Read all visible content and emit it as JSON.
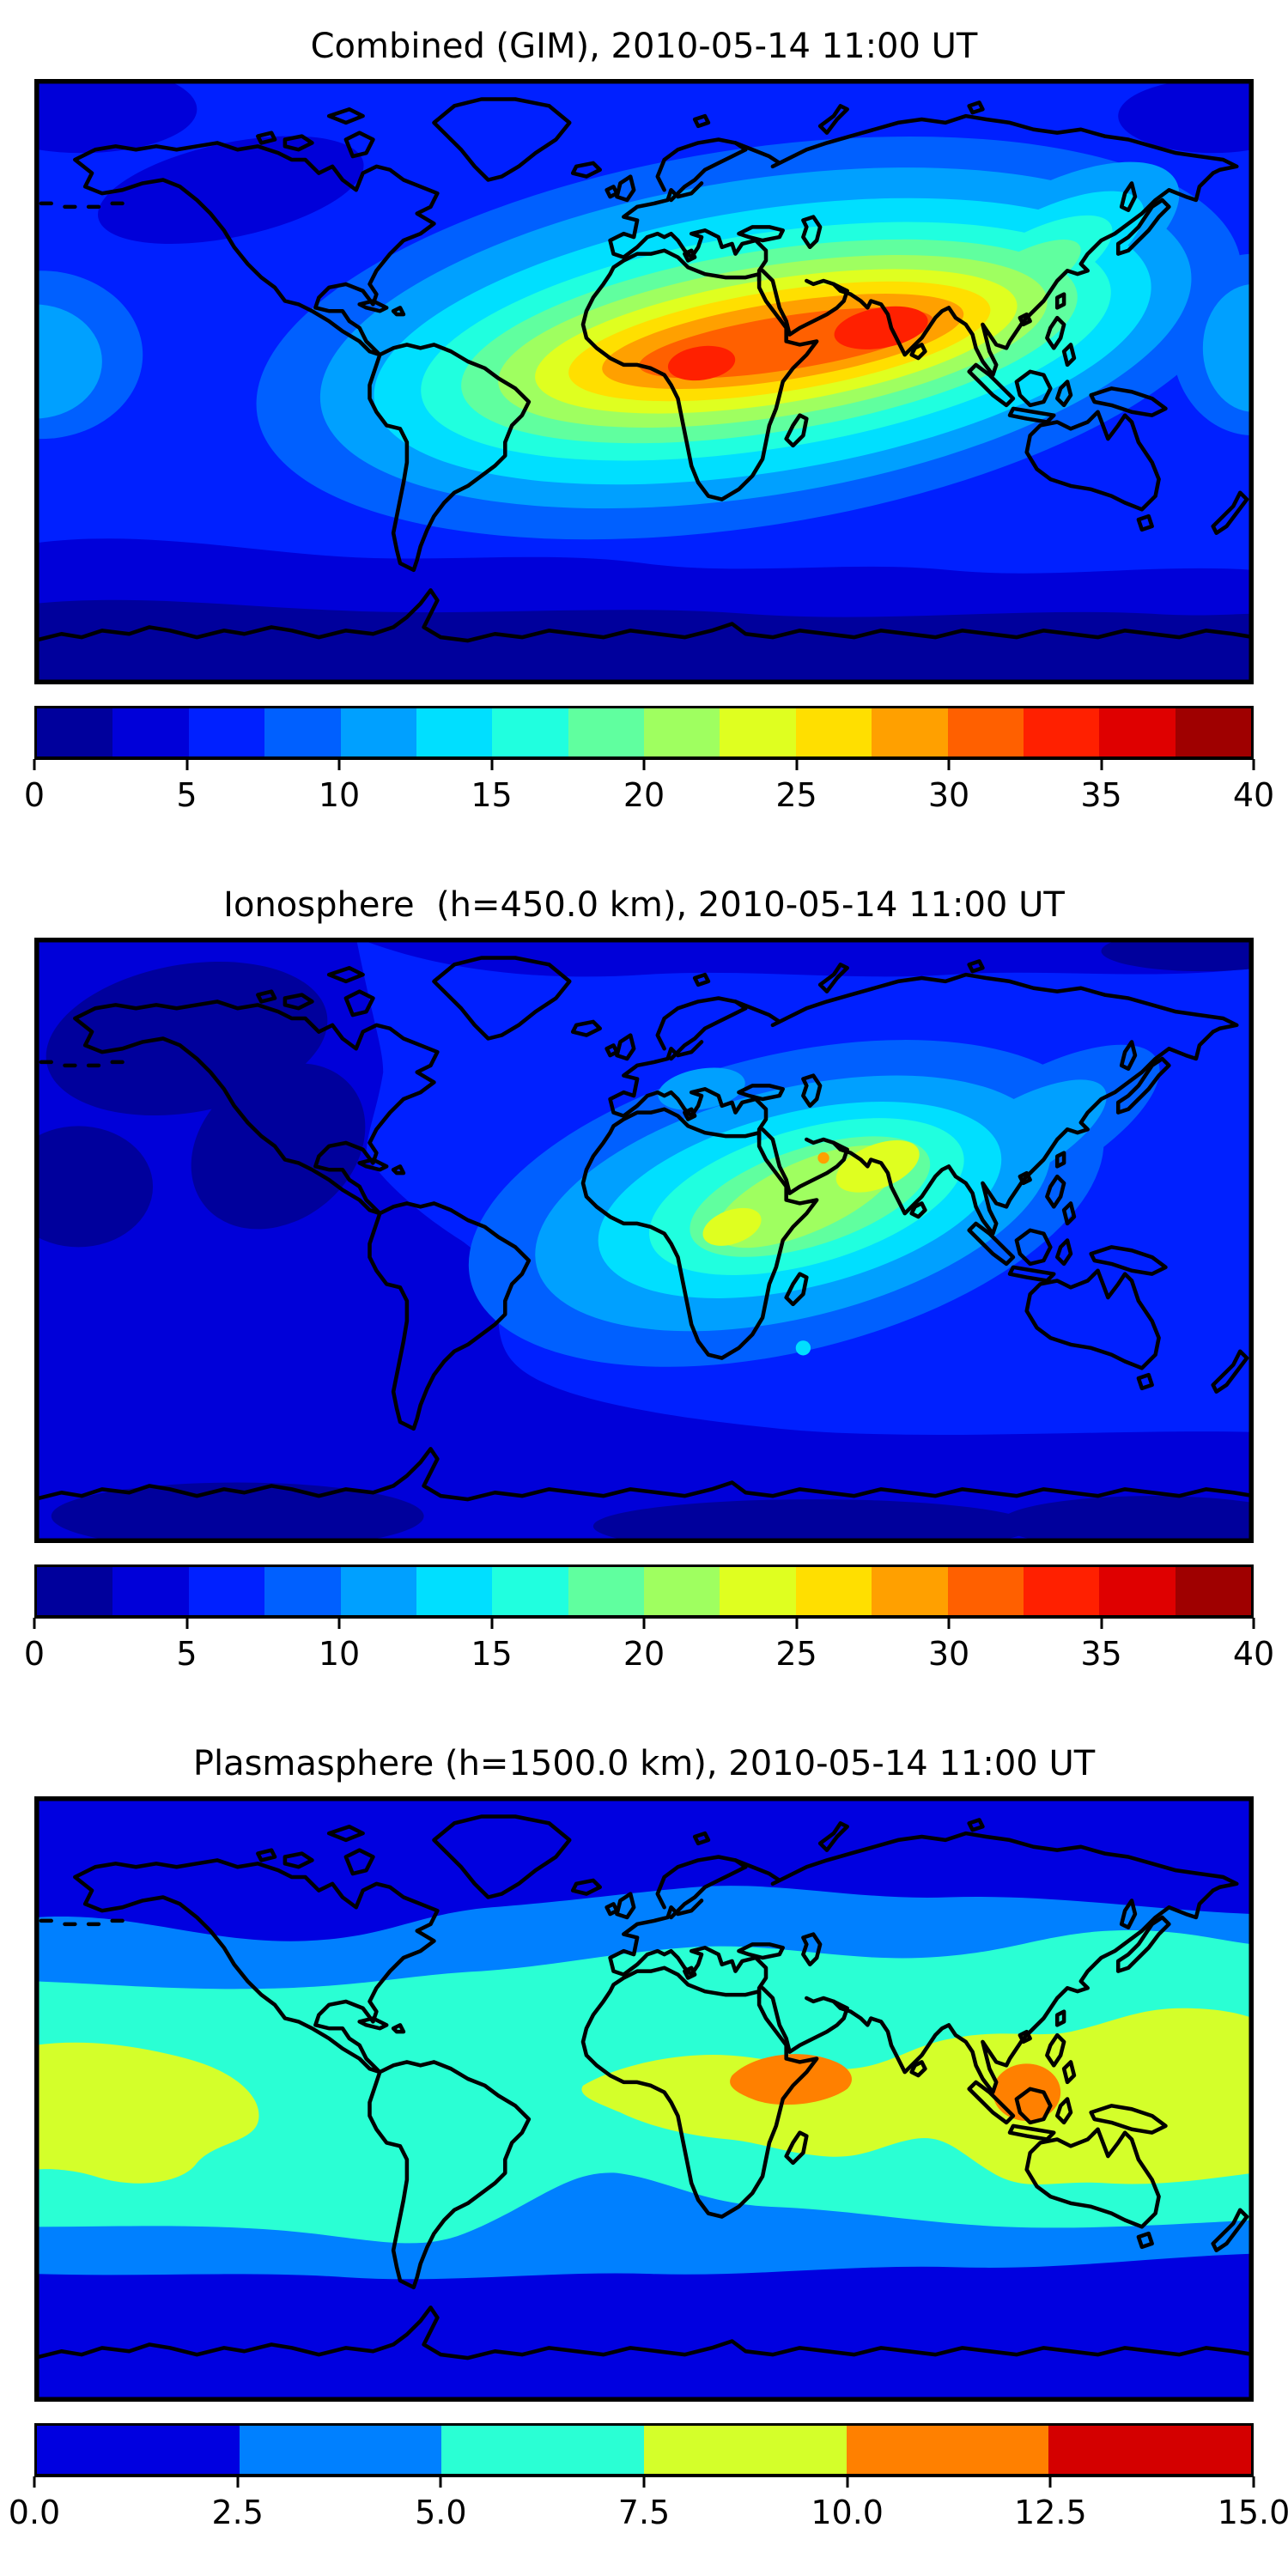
{
  "palette": {
    "jet16": [
      "#00009C",
      "#0000D9",
      "#0020FF",
      "#0060FF",
      "#00A0FF",
      "#00DFFF",
      "#20FFDF",
      "#60FF9F",
      "#9FFF60",
      "#DFFF20",
      "#FFDF00",
      "#FFA000",
      "#FF6000",
      "#FF2000",
      "#DF0000",
      "#9F0000"
    ],
    "jet6": [
      "#0000E0",
      "#0080FF",
      "#2AFFD4",
      "#D4FF2A",
      "#FF8000",
      "#D40000"
    ]
  },
  "figures": [
    {
      "id": "combined",
      "title": "Combined (GIM), 2010-05-14 11:00 UT",
      "colorbar": {
        "palette": "jet16",
        "ticks": [
          "0",
          "5",
          "10",
          "15",
          "20",
          "25",
          "30",
          "35",
          "40"
        ]
      }
    },
    {
      "id": "ionosphere",
      "title": "Ionosphere  (h=450.0 km), 2010-05-14 11:00 UT",
      "colorbar": {
        "palette": "jet16",
        "ticks": [
          "0",
          "5",
          "10",
          "15",
          "20",
          "25",
          "30",
          "35",
          "40"
        ]
      }
    },
    {
      "id": "plasmasphere",
      "title": "Plasmasphere (h=1500.0 km), 2010-05-14 11:00 UT",
      "colorbar": {
        "palette": "jet6",
        "ticks": [
          "0.0",
          "2.5",
          "5.0",
          "7.5",
          "10.0",
          "12.5",
          "15.0"
        ]
      }
    }
  ],
  "chart_data": [
    {
      "type": "filled_contour_map",
      "title": "Combined (GIM), 2010-05-14 11:00 UT",
      "projection": "equirectangular",
      "lon_range": [
        -180,
        180
      ],
      "lat_range": [
        -90,
        90
      ],
      "colormap": "jet",
      "value_min": 0,
      "value_max": 40,
      "contour_interval": 2.5,
      "colorbar_ticks": [
        0,
        5,
        10,
        15,
        20,
        25,
        30,
        35,
        40
      ],
      "overlay": "black coastlines",
      "features": [
        {
          "name": "equatorial-high-band",
          "description": "elongated high-value band from eastern Atlantic across Africa, Arabia and India toward Southeast Asia",
          "lon_extent": [
            -30,
            105
          ],
          "lat_center": 12,
          "value_range": [
            25,
            35
          ]
        },
        {
          "name": "african-core",
          "lon": 17,
          "lat": 6,
          "value_range": [
            32.5,
            35
          ]
        },
        {
          "name": "indian-arabian-sea-core",
          "lon": 70,
          "lat": 15,
          "value_range": [
            32.5,
            35
          ]
        },
        {
          "name": "northeast-asia-extension",
          "lon": 125,
          "lat": 35,
          "value_range": [
            15,
            20
          ]
        },
        {
          "name": "north-american-low",
          "lon": -120,
          "lat": 55,
          "value_range": [
            2.5,
            5
          ]
        },
        {
          "name": "southern-polar-low",
          "lat_extent": [
            -90,
            -65
          ],
          "value_range": [
            0,
            2.5
          ]
        }
      ]
    },
    {
      "type": "filled_contour_map",
      "title": "Ionosphere  (h=450.0 km), 2010-05-14 11:00 UT",
      "projection": "equirectangular",
      "lon_range": [
        -180,
        180
      ],
      "lat_range": [
        -90,
        90
      ],
      "colormap": "jet",
      "value_min": 0,
      "value_max": 40,
      "contour_interval": 2.5,
      "colorbar_ticks": [
        0,
        5,
        10,
        15,
        20,
        25,
        30,
        35,
        40
      ],
      "overlay": "black coastlines",
      "features": [
        {
          "name": "african-asian-high",
          "description": "oval maximum over Africa, Arabia and India tilted SW-NE",
          "lon_extent": [
            -10,
            100
          ],
          "lat_center": 10,
          "value_range": [
            15,
            25
          ]
        },
        {
          "name": "central-african-core",
          "lon": 26,
          "lat": 4,
          "value_range": [
            22.5,
            25
          ]
        },
        {
          "name": "arabia-india-core",
          "lon": 69,
          "lat": 22,
          "value_range": [
            22.5,
            25
          ]
        },
        {
          "name": "persian-gulf-spot",
          "lon": 53,
          "lat": 24,
          "value_range": [
            27.5,
            30
          ]
        },
        {
          "name": "north-pacific-low",
          "lon": -135,
          "lat": 60,
          "value_range": [
            0,
            2.5
          ]
        },
        {
          "name": "east-pacific-low",
          "lon": -168,
          "lat": 16,
          "value_range": [
            0,
            2.5
          ]
        },
        {
          "name": "antarctic-low",
          "lat_extent": [
            -90,
            -65
          ],
          "value_range": [
            0,
            5
          ]
        }
      ]
    },
    {
      "type": "filled_contour_map",
      "title": "Plasmasphere (h=1500.0 km), 2010-05-14 11:00 UT",
      "projection": "equirectangular",
      "lon_range": [
        -180,
        180
      ],
      "lat_range": [
        -90,
        90
      ],
      "colormap": "jet",
      "value_min": 0,
      "value_max": 15,
      "contour_interval": 2.5,
      "colorbar_ticks": [
        0.0,
        2.5,
        5.0,
        7.5,
        10.0,
        12.5,
        15.0
      ],
      "overlay": "black coastlines",
      "features": [
        {
          "name": "polar-lows",
          "description": "dark blue below 2.5 poleward of about 55 deg latitude in both hemispheres",
          "value_range": [
            0,
            2.5
          ]
        },
        {
          "name": "midlatitude-band",
          "description": "zonal band 2.5-5 between roughly 35 and 55 deg latitude",
          "value_range": [
            2.5,
            5
          ]
        },
        {
          "name": "subtropical-band",
          "description": "zonal band 5-7.5 between roughly 20 and 35 deg latitude",
          "value_range": [
            5,
            7.5
          ]
        },
        {
          "name": "equatorial-band",
          "description": "yellow-green 7.5-10 band across east Pacific and from Africa through Indonesia to the dateline",
          "value_range": [
            7.5,
            10
          ]
        },
        {
          "name": "horn-of-africa-spot",
          "lon": 42,
          "lat": 7,
          "value_range": [
            10,
            12.5
          ]
        },
        {
          "name": "borneo-spot",
          "lon": 113,
          "lat": 2,
          "value_range": [
            10,
            12.5
          ]
        }
      ]
    }
  ]
}
